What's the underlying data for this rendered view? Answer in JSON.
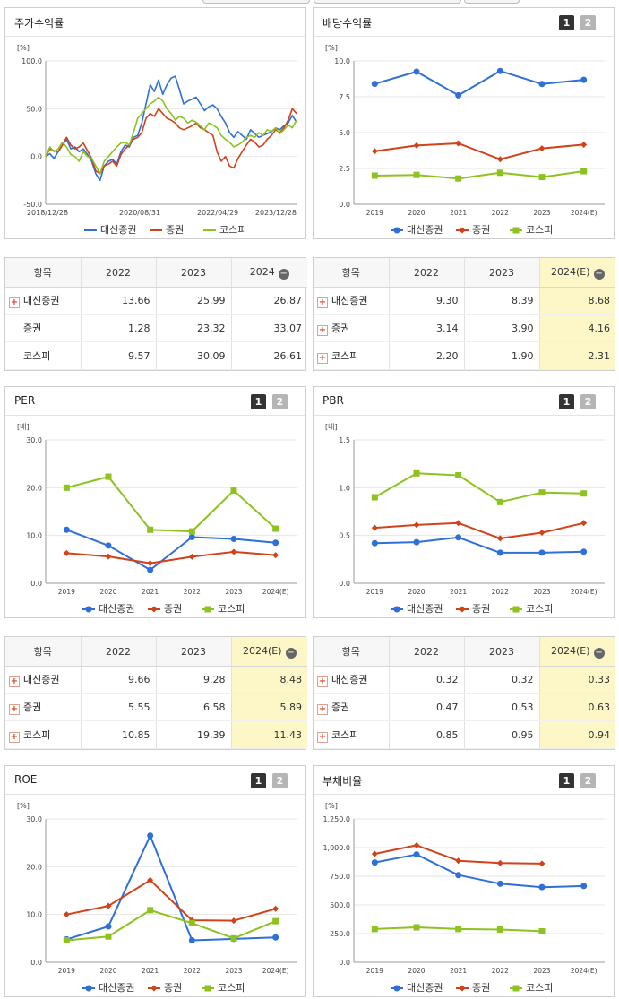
{
  "legend_labels": [
    "대신증권",
    "증권",
    "코스피"
  ],
  "colors": {
    "daishin": "#2e6fd8",
    "sec": "#d2421a",
    "kospi": "#8dc21f"
  },
  "panels": {
    "stock_return": {
      "title": "주가수익률"
    },
    "dividend": {
      "title": "배당수익률",
      "btn1": "1",
      "btn2": "2"
    },
    "per": {
      "title": "PER",
      "btn1": "1",
      "btn2": "2"
    },
    "pbr": {
      "title": "PBR",
      "btn1": "1",
      "btn2": "2"
    },
    "roe": {
      "title": "ROE",
      "btn1": "1",
      "btn2": "2"
    },
    "debt": {
      "title": "부채비율",
      "btn1": "1",
      "btn2": "2"
    }
  },
  "tables": {
    "stock_return": {
      "headers": [
        "항목",
        "2022",
        "2023",
        "2024"
      ],
      "rows": [
        {
          "name": "대신증권",
          "plus": true,
          "values": [
            "13.66",
            "25.99",
            "26.87"
          ]
        },
        {
          "name": "증권",
          "plus": false,
          "values": [
            "1.28",
            "23.32",
            "33.07"
          ]
        },
        {
          "name": "코스피",
          "plus": false,
          "values": [
            "9.57",
            "30.09",
            "26.61"
          ]
        }
      ]
    },
    "dividend": {
      "headers": [
        "항목",
        "2022",
        "2023",
        "2024(E)"
      ],
      "rows": [
        {
          "name": "대신증권",
          "plus": true,
          "values": [
            "9.30",
            "8.39",
            "8.68"
          ]
        },
        {
          "name": "증권",
          "plus": true,
          "values": [
            "3.14",
            "3.90",
            "4.16"
          ]
        },
        {
          "name": "코스피",
          "plus": true,
          "values": [
            "2.20",
            "1.90",
            "2.31"
          ]
        }
      ]
    },
    "per": {
      "headers": [
        "항목",
        "2022",
        "2023",
        "2024(E)"
      ],
      "rows": [
        {
          "name": "대신증권",
          "plus": true,
          "values": [
            "9.66",
            "9.28",
            "8.48"
          ]
        },
        {
          "name": "증권",
          "plus": true,
          "values": [
            "5.55",
            "6.58",
            "5.89"
          ]
        },
        {
          "name": "코스피",
          "plus": true,
          "values": [
            "10.85",
            "19.39",
            "11.43"
          ]
        }
      ]
    },
    "pbr": {
      "headers": [
        "항목",
        "2022",
        "2023",
        "2024(E)"
      ],
      "rows": [
        {
          "name": "대신증권",
          "plus": true,
          "values": [
            "0.32",
            "0.32",
            "0.33"
          ]
        },
        {
          "name": "증권",
          "plus": true,
          "values": [
            "0.47",
            "0.53",
            "0.63"
          ]
        },
        {
          "name": "코스피",
          "plus": true,
          "values": [
            "0.85",
            "0.95",
            "0.94"
          ]
        }
      ]
    }
  },
  "chart_data": [
    {
      "id": "stock_return",
      "type": "line",
      "title": "주가수익률",
      "ylabel": "[%]",
      "ylim": [
        -50,
        100
      ],
      "yticks": [
        "100.0",
        "50.0",
        "0.0",
        "-50.0"
      ],
      "ytick_values": [
        100,
        50,
        0,
        -50
      ],
      "x_labels": [
        "2018/12/28",
        "2020/08/31",
        "2022/04/29",
        "2023/12/28"
      ],
      "x_label_pos": [
        0,
        0.375,
        0.686,
        1
      ],
      "x_count": 61,
      "series": [
        {
          "name": "대신증권",
          "color": "#2e6fd8",
          "values": [
            0,
            3,
            -2,
            5,
            12,
            18,
            8,
            10,
            5,
            8,
            2,
            -5,
            -18,
            -25,
            -10,
            -5,
            -3,
            -8,
            5,
            12,
            10,
            20,
            22,
            35,
            55,
            75,
            68,
            80,
            65,
            75,
            82,
            84,
            70,
            55,
            58,
            60,
            62,
            55,
            48,
            52,
            54,
            50,
            42,
            35,
            25,
            20,
            26,
            22,
            18,
            28,
            24,
            20,
            22,
            24,
            26,
            30,
            28,
            32,
            35,
            43,
            36
          ]
        },
        {
          "name": "증권",
          "color": "#d2421a",
          "values": [
            0,
            8,
            6,
            5,
            12,
            20,
            12,
            8,
            10,
            14,
            6,
            -2,
            -15,
            -18,
            -10,
            -8,
            -5,
            -10,
            2,
            8,
            12,
            18,
            20,
            25,
            40,
            45,
            42,
            50,
            45,
            40,
            38,
            35,
            30,
            28,
            30,
            32,
            35,
            30,
            28,
            25,
            22,
            5,
            -5,
            0,
            -10,
            -12,
            -2,
            5,
            12,
            18,
            15,
            10,
            12,
            18,
            22,
            28,
            25,
            30,
            38,
            50,
            45
          ]
        },
        {
          "name": "코스피",
          "color": "#8dc21f",
          "values": [
            0,
            10,
            5,
            8,
            15,
            10,
            2,
            0,
            -5,
            5,
            0,
            -2,
            -10,
            -18,
            -5,
            0,
            5,
            10,
            14,
            15,
            12,
            25,
            40,
            45,
            50,
            55,
            58,
            62,
            58,
            50,
            45,
            38,
            42,
            40,
            35,
            38,
            36,
            32,
            28,
            35,
            33,
            30,
            22,
            18,
            15,
            10,
            12,
            15,
            20,
            22,
            20,
            25,
            22,
            28,
            26,
            30,
            24,
            28,
            33,
            30,
            38
          ]
        }
      ]
    },
    {
      "id": "dividend",
      "type": "line",
      "title": "배당수익률",
      "ylabel": "[%]",
      "ylim": [
        0,
        10
      ],
      "yticks": [
        "10.0",
        "7.5",
        "5.0",
        "2.5",
        "0.0"
      ],
      "ytick_values": [
        10,
        7.5,
        5,
        2.5,
        0
      ],
      "categories": [
        "2019",
        "2020",
        "2021",
        "2022",
        "2023",
        "2024(E)"
      ],
      "series": [
        {
          "name": "대신증권",
          "color": "#2e6fd8",
          "values": [
            8.4,
            9.25,
            7.6,
            9.3,
            8.39,
            8.68
          ]
        },
        {
          "name": "증권",
          "color": "#d2421a",
          "values": [
            3.7,
            4.1,
            4.25,
            3.14,
            3.9,
            4.16
          ]
        },
        {
          "name": "코스피",
          "color": "#8dc21f",
          "values": [
            2.0,
            2.05,
            1.8,
            2.2,
            1.9,
            2.31
          ]
        }
      ]
    },
    {
      "id": "per",
      "type": "line",
      "title": "PER",
      "ylabel": "[배]",
      "ylim": [
        0,
        30
      ],
      "yticks": [
        "30.0",
        "20.0",
        "10.0",
        "0.0"
      ],
      "ytick_values": [
        30,
        20,
        10,
        0
      ],
      "categories": [
        "2019",
        "2020",
        "2021",
        "2022",
        "2023",
        "2024(E)"
      ],
      "series": [
        {
          "name": "대신증권",
          "color": "#2e6fd8",
          "values": [
            11.2,
            7.9,
            2.8,
            9.66,
            9.28,
            8.48
          ]
        },
        {
          "name": "증권",
          "color": "#d2421a",
          "values": [
            6.3,
            5.6,
            4.2,
            5.55,
            6.58,
            5.89
          ]
        },
        {
          "name": "코스피",
          "color": "#8dc21f",
          "values": [
            20.0,
            22.3,
            11.2,
            10.85,
            19.39,
            11.43
          ]
        }
      ]
    },
    {
      "id": "pbr",
      "type": "line",
      "title": "PBR",
      "ylabel": "[배]",
      "ylim": [
        0,
        1.5
      ],
      "yticks": [
        "1.5",
        "1.0",
        "0.5",
        "0.0"
      ],
      "ytick_values": [
        1.5,
        1.0,
        0.5,
        0
      ],
      "categories": [
        "2019",
        "2020",
        "2021",
        "2022",
        "2023",
        "2024(E)"
      ],
      "series": [
        {
          "name": "대신증권",
          "color": "#2e6fd8",
          "values": [
            0.42,
            0.43,
            0.48,
            0.32,
            0.32,
            0.33
          ]
        },
        {
          "name": "증권",
          "color": "#d2421a",
          "values": [
            0.58,
            0.61,
            0.63,
            0.47,
            0.53,
            0.63
          ]
        },
        {
          "name": "코스피",
          "color": "#8dc21f",
          "values": [
            0.9,
            1.15,
            1.13,
            0.85,
            0.95,
            0.94
          ]
        }
      ]
    },
    {
      "id": "roe",
      "type": "line",
      "title": "ROE",
      "ylabel": "[%]",
      "ylim": [
        0,
        30
      ],
      "yticks": [
        "30.0",
        "20.0",
        "10.0",
        "0.0"
      ],
      "ytick_values": [
        30,
        20,
        10,
        0
      ],
      "categories": [
        "2019",
        "2020",
        "2021",
        "2022",
        "2023",
        "2024(E)"
      ],
      "series": [
        {
          "name": "대신증권",
          "color": "#2e6fd8",
          "values": [
            4.8,
            7.5,
            26.5,
            4.6,
            4.9,
            5.2
          ]
        },
        {
          "name": "증권",
          "color": "#d2421a",
          "values": [
            10.0,
            11.8,
            17.2,
            8.8,
            8.7,
            11.2
          ]
        },
        {
          "name": "코스피",
          "color": "#8dc21f",
          "values": [
            4.6,
            5.4,
            10.9,
            8.2,
            5.0,
            8.6
          ]
        }
      ]
    },
    {
      "id": "debt",
      "type": "line",
      "title": "부채비율",
      "ylabel": "[%]",
      "ylim": [
        0,
        1250
      ],
      "yticks": [
        "1,250.0",
        "1,000.0",
        "750.0",
        "500.0",
        "250.0",
        "0.0"
      ],
      "ytick_values": [
        1250,
        1000,
        750,
        500,
        250,
        0
      ],
      "categories": [
        "2019",
        "2020",
        "2021",
        "2022",
        "2023",
        "2024(E)"
      ],
      "series": [
        {
          "name": "대신증권",
          "color": "#2e6fd8",
          "values": [
            870,
            940,
            760,
            685,
            655,
            665
          ]
        },
        {
          "name": "증권",
          "color": "#d2421a",
          "values": [
            945,
            1020,
            885,
            865,
            860,
            null
          ]
        },
        {
          "name": "코스피",
          "color": "#8dc21f",
          "values": [
            290,
            305,
            290,
            285,
            270,
            null
          ]
        }
      ]
    }
  ]
}
